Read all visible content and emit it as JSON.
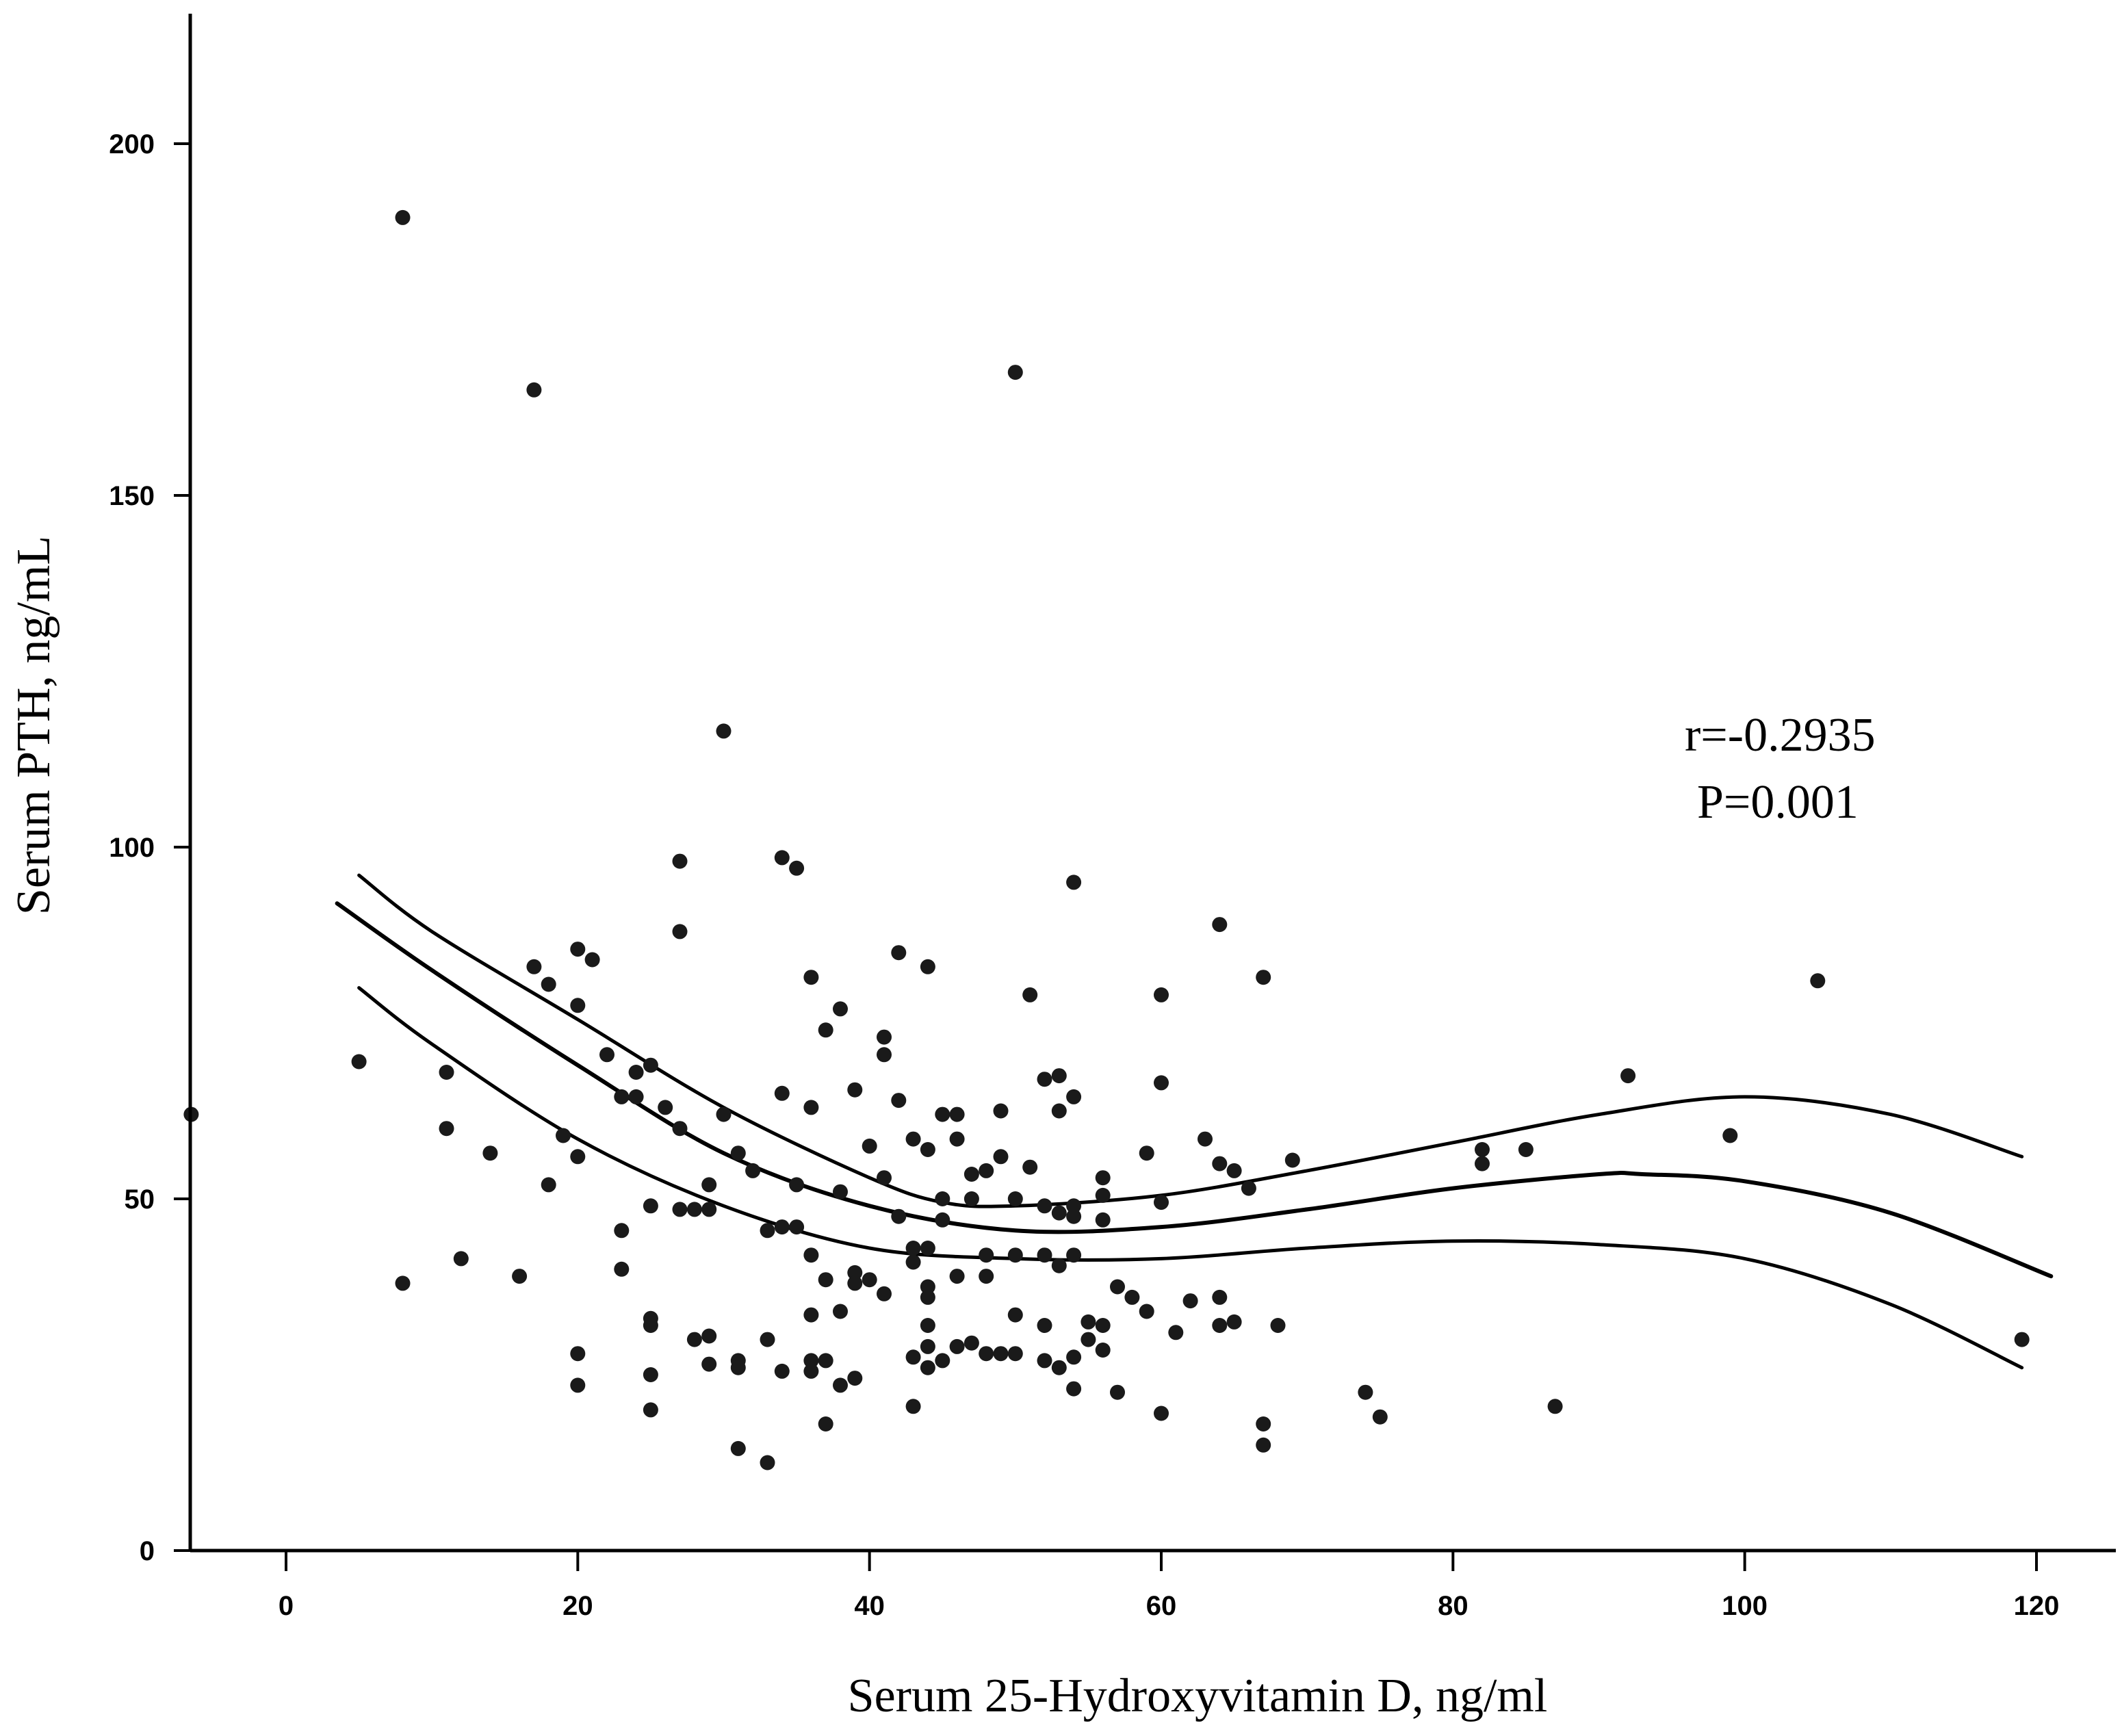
{
  "chart_data": {
    "type": "scatter",
    "title": "",
    "xlabel": "Serum 25-Hydroxyvitamin D, ng/ml",
    "ylabel": "Serum PTH, ng/mL",
    "xlim": [
      -6.5,
      125
    ],
    "ylim": [
      0,
      218
    ],
    "xticks": [
      0,
      20,
      40,
      60,
      80,
      100,
      120
    ],
    "yticks": [
      0,
      50,
      100,
      150,
      200
    ],
    "xtick_labels": [
      "0",
      "20",
      "40",
      "60",
      "80",
      "100",
      "120"
    ],
    "ytick_labels": [
      "0",
      "50",
      "100",
      "150",
      "200"
    ],
    "grid": false,
    "annotations": [
      "r=-0.2935",
      "P=0.001"
    ],
    "colors": {
      "marker": "#1a1a1a",
      "line": "#000000",
      "axis": "#000000"
    },
    "series": [
      {
        "name": "observations",
        "kind": "scatter",
        "points": [
          [
            8,
            189.5
          ],
          [
            17,
            165
          ],
          [
            50,
            167.5
          ],
          [
            30,
            116.5
          ],
          [
            34,
            98.5
          ],
          [
            35,
            97
          ],
          [
            27,
            98
          ],
          [
            54,
            95
          ],
          [
            27,
            88
          ],
          [
            64,
            89
          ],
          [
            20,
            85.5
          ],
          [
            21,
            84
          ],
          [
            17,
            83
          ],
          [
            18,
            80.5
          ],
          [
            42,
            85
          ],
          [
            44,
            83
          ],
          [
            36,
            81.5
          ],
          [
            51,
            79
          ],
          [
            60,
            79
          ],
          [
            67,
            81.5
          ],
          [
            105,
            81
          ],
          [
            20,
            77.5
          ],
          [
            38,
            77
          ],
          [
            37,
            74
          ],
          [
            41,
            73
          ],
          [
            41,
            70.5
          ],
          [
            5,
            69.5
          ],
          [
            22,
            70.5
          ],
          [
            11,
            68
          ],
          [
            24,
            68
          ],
          [
            25,
            69
          ],
          [
            52,
            67
          ],
          [
            53,
            67.5
          ],
          [
            60,
            66.5
          ],
          [
            92,
            67.5
          ],
          [
            23,
            64.5
          ],
          [
            24,
            64.5
          ],
          [
            34,
            65
          ],
          [
            39,
            65.5
          ],
          [
            54,
            64.5
          ],
          [
            26,
            63
          ],
          [
            36,
            63
          ],
          [
            42,
            64
          ],
          [
            45,
            62
          ],
          [
            46,
            62
          ],
          [
            49,
            62.5
          ],
          [
            53,
            62.5
          ],
          [
            11,
            60
          ],
          [
            27,
            60
          ],
          [
            19,
            59
          ],
          [
            43,
            58.5
          ],
          [
            46,
            58.5
          ],
          [
            63,
            58.5
          ],
          [
            99,
            59
          ],
          [
            14,
            56.5
          ],
          [
            30,
            62
          ],
          [
            31,
            56.5
          ],
          [
            20,
            56
          ],
          [
            40,
            57.5
          ],
          [
            44,
            57
          ],
          [
            49,
            56
          ],
          [
            59,
            56.5
          ],
          [
            69,
            55.5
          ],
          [
            82,
            57
          ],
          [
            85,
            57
          ],
          [
            82,
            55
          ],
          [
            64,
            55
          ],
          [
            65,
            54
          ],
          [
            32,
            54
          ],
          [
            35,
            52
          ],
          [
            41,
            53
          ],
          [
            47,
            53.5
          ],
          [
            48,
            54
          ],
          [
            51,
            54.5
          ],
          [
            56,
            53
          ],
          [
            66,
            51.5
          ],
          [
            18,
            52
          ],
          [
            29,
            52
          ],
          [
            38,
            51
          ],
          [
            45,
            50
          ],
          [
            47,
            50
          ],
          [
            50,
            50
          ],
          [
            52,
            49
          ],
          [
            54,
            49
          ],
          [
            56,
            50.5
          ],
          [
            60,
            49.5
          ],
          [
            25,
            49
          ],
          [
            27,
            48.5
          ],
          [
            28,
            48.5
          ],
          [
            29,
            48.5
          ],
          [
            42,
            47.5
          ],
          [
            45,
            47
          ],
          [
            53,
            48
          ],
          [
            54,
            47.5
          ],
          [
            56,
            47
          ],
          [
            23,
            45.5
          ],
          [
            33,
            45.5
          ],
          [
            34,
            46
          ],
          [
            35,
            46
          ],
          [
            43,
            43
          ],
          [
            44,
            43
          ],
          [
            48,
            42
          ],
          [
            50,
            42
          ],
          [
            52,
            42
          ],
          [
            54,
            42
          ],
          [
            36,
            42
          ],
          [
            43,
            41
          ],
          [
            23,
            40
          ],
          [
            39,
            39.5
          ],
          [
            40,
            38.5
          ],
          [
            44,
            37.5
          ],
          [
            46,
            39
          ],
          [
            48,
            39
          ],
          [
            53,
            40.5
          ],
          [
            57,
            37.5
          ],
          [
            58,
            36
          ],
          [
            62,
            35.5
          ],
          [
            64,
            36
          ],
          [
            37,
            38.5
          ],
          [
            39,
            38
          ],
          [
            41,
            36.5
          ],
          [
            44,
            36
          ],
          [
            55,
            32.5
          ],
          [
            56,
            32
          ],
          [
            59,
            34
          ],
          [
            61,
            31
          ],
          [
            64,
            32
          ],
          [
            65,
            32.5
          ],
          [
            68,
            32
          ],
          [
            8,
            38
          ],
          [
            12,
            41.5
          ],
          [
            16,
            39
          ],
          [
            25,
            33
          ],
          [
            25,
            32
          ],
          [
            28,
            30
          ],
          [
            29,
            30.5
          ],
          [
            33,
            30
          ],
          [
            36,
            33.5
          ],
          [
            38,
            34
          ],
          [
            44,
            32
          ],
          [
            50,
            33.5
          ],
          [
            52,
            32
          ],
          [
            20,
            28
          ],
          [
            25,
            25
          ],
          [
            29,
            26.5
          ],
          [
            31,
            27
          ],
          [
            31,
            26
          ],
          [
            34,
            25.5
          ],
          [
            36,
            27
          ],
          [
            36,
            25.5
          ],
          [
            37,
            27
          ],
          [
            39,
            24.5
          ],
          [
            43,
            27.5
          ],
          [
            44,
            26
          ],
          [
            45,
            27
          ],
          [
            44,
            29
          ],
          [
            46,
            29
          ],
          [
            47,
            29.5
          ],
          [
            48,
            28
          ],
          [
            49,
            28
          ],
          [
            50,
            28
          ],
          [
            52,
            27
          ],
          [
            53,
            26
          ],
          [
            54,
            27.5
          ],
          [
            55,
            30
          ],
          [
            56,
            28.5
          ],
          [
            20,
            23.5
          ],
          [
            25,
            20
          ],
          [
            31,
            14.5
          ],
          [
            33,
            12.5
          ],
          [
            37,
            18
          ],
          [
            38,
            23.5
          ],
          [
            43,
            20.5
          ],
          [
            54,
            23
          ],
          [
            57,
            22.5
          ],
          [
            60,
            19.5
          ],
          [
            67,
            18
          ],
          [
            67,
            15
          ],
          [
            74,
            22.5
          ],
          [
            75,
            19
          ],
          [
            87,
            20.5
          ],
          [
            119,
            30
          ],
          [
            -6.5,
            62
          ]
        ]
      },
      {
        "name": "fit",
        "kind": "line",
        "points": [
          [
            3.5,
            92
          ],
          [
            10,
            82.5
          ],
          [
            20,
            69
          ],
          [
            30,
            56.5
          ],
          [
            40,
            49
          ],
          [
            50,
            45.5
          ],
          [
            60,
            46
          ],
          [
            70,
            48.5
          ],
          [
            80,
            51.5
          ],
          [
            90,
            53.5
          ],
          [
            93,
            53.5
          ],
          [
            100,
            52.5
          ],
          [
            110,
            48
          ],
          [
            121,
            39
          ]
        ]
      },
      {
        "name": "ci_upper",
        "kind": "line",
        "points": [
          [
            5,
            96
          ],
          [
            10,
            88
          ],
          [
            20,
            75.5
          ],
          [
            30,
            63
          ],
          [
            40,
            53
          ],
          [
            45,
            49.5
          ],
          [
            50,
            49
          ],
          [
            60,
            50.5
          ],
          [
            70,
            54
          ],
          [
            80,
            58
          ],
          [
            90,
            62
          ],
          [
            100,
            64.5
          ],
          [
            110,
            62
          ],
          [
            119,
            56
          ]
        ]
      },
      {
        "name": "ci_lower",
        "kind": "line",
        "points": [
          [
            5,
            80
          ],
          [
            10,
            72
          ],
          [
            20,
            58.5
          ],
          [
            30,
            49
          ],
          [
            40,
            43
          ],
          [
            50,
            41.5
          ],
          [
            60,
            41.5
          ],
          [
            70,
            43
          ],
          [
            80,
            44
          ],
          [
            90,
            43.5
          ],
          [
            100,
            41.5
          ],
          [
            110,
            35
          ],
          [
            119,
            26
          ]
        ]
      }
    ]
  }
}
